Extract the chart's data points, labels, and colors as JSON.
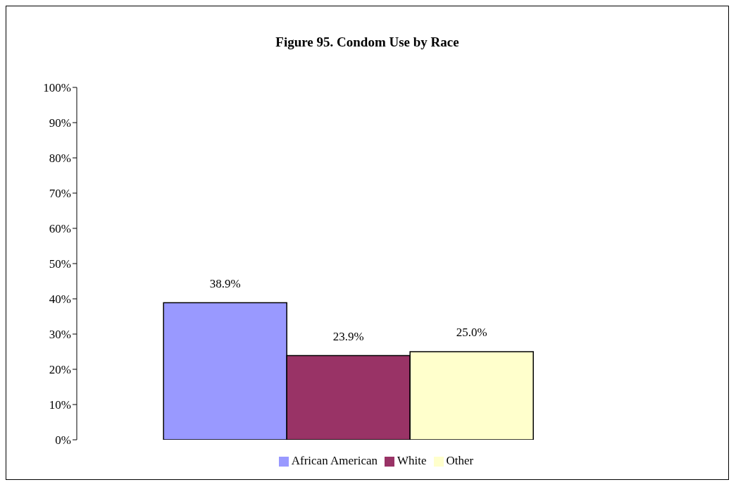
{
  "chart_data": {
    "type": "bar",
    "title": "Figure 95. Condom Use by Race",
    "categories": [
      null
    ],
    "series": [
      {
        "name": "African American",
        "color": "#9999ff",
        "values": [
          38.9
        ],
        "value_labels": [
          "38.9%"
        ]
      },
      {
        "name": "White",
        "color": "#993366",
        "values": [
          23.9
        ],
        "value_labels": [
          "23.9%"
        ]
      },
      {
        "name": "Other",
        "color": "#ffffcc",
        "values": [
          25.0
        ],
        "value_labels": [
          "25.0%"
        ]
      }
    ],
    "ylim": [
      0,
      100
    ],
    "yticks": [
      {
        "value": 0,
        "label": "0%"
      },
      {
        "value": 10,
        "label": "10%"
      },
      {
        "value": 20,
        "label": "20%"
      },
      {
        "value": 30,
        "label": "30%"
      },
      {
        "value": 40,
        "label": "40%"
      },
      {
        "value": 50,
        "label": "50%"
      },
      {
        "value": 60,
        "label": "60%"
      },
      {
        "value": 70,
        "label": "70%"
      },
      {
        "value": 80,
        "label": "80%"
      },
      {
        "value": 90,
        "label": "90%"
      },
      {
        "value": 100,
        "label": "100%"
      }
    ],
    "grid": false,
    "legend": "bottom"
  }
}
